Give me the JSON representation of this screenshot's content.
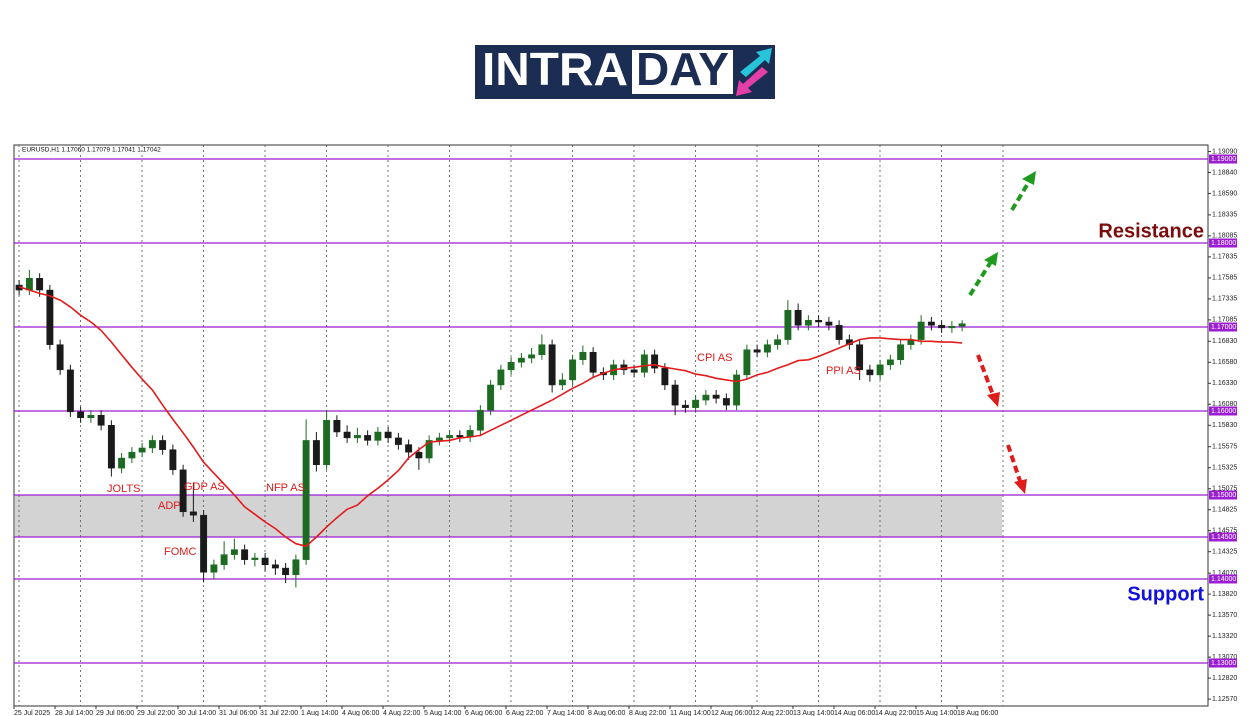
{
  "logo": {
    "left": "INTRA",
    "right": "DAY"
  },
  "chart_data": {
    "type": "candlestick",
    "header": "EURUSD,H1  1.17060 1.17079 1.17041 1.17042",
    "categories": [
      "25 Jul 2025",
      null,
      null,
      null,
      "28 Jul 14:00",
      null,
      null,
      null,
      "29 Jul 06:00",
      null,
      null,
      null,
      "29 Jul 22:00",
      null,
      null,
      null,
      "30 Jul 14:00",
      null,
      null,
      null,
      "31 Jul 06:00",
      null,
      null,
      null,
      "31 Jul 22:00",
      null,
      null,
      null,
      "1 Aug 14:00",
      null,
      null,
      null,
      "4 Aug 06:00",
      null,
      null,
      null,
      "4 Aug 22:00",
      null,
      null,
      null,
      "5 Aug 14:00",
      null,
      null,
      null,
      "6 Aug 06:00",
      null,
      null,
      null,
      "6 Aug 22:00",
      null,
      null,
      null,
      "7 Aug 14:00",
      null,
      null,
      null,
      "8 Aug 06:00",
      null,
      null,
      null,
      "8 Aug 22:00",
      null,
      null,
      null,
      "11 Aug 14:00",
      null,
      null,
      null,
      "12 Aug 06:00",
      null,
      null,
      null,
      "12 Aug 22:00",
      null,
      null,
      null,
      "13 Aug 14:00",
      null,
      null,
      null,
      "14 Aug 06:00",
      null,
      null,
      null,
      "14 Aug 22:00",
      null,
      null,
      null,
      "15 Aug 14:00",
      null,
      null,
      null,
      "18 Aug 06:00"
    ],
    "open": [
      1.175,
      1.1744,
      1.1758,
      1.1744,
      1.1679,
      1.1649,
      1.1599,
      1.1592,
      1.1595,
      1.1583,
      1.1532,
      1.1544,
      1.1551,
      1.1556,
      1.1565,
      1.1554,
      1.153,
      1.148,
      1.1476,
      1.1408,
      1.1417,
      1.1429,
      1.1435,
      1.1423,
      1.1425,
      1.1417,
      1.1413,
      1.1405,
      1.1423,
      1.1565,
      1.1536,
      1.1589,
      1.1575,
      1.1568,
      1.1571,
      1.1565,
      1.1575,
      1.1568,
      1.156,
      1.1551,
      1.1544,
      1.1565,
      1.1568,
      1.1571,
      1.1569,
      1.1577,
      1.1601,
      1.1631,
      1.1649,
      1.1658,
      1.1663,
      1.1667,
      1.1679,
      1.1631,
      1.1637,
      1.1661,
      1.167,
      1.1646,
      1.1643,
      1.1655,
      1.1649,
      1.1646,
      1.1667,
      1.1651,
      1.1631,
      1.1607,
      1.1604,
      1.1613,
      1.1619,
      1.1615,
      1.1607,
      1.1643,
      1.1673,
      1.167,
      1.1679,
      1.1685,
      1.172,
      1.1702,
      1.1708,
      1.1706,
      1.1702,
      1.1685,
      1.1679,
      1.1649,
      1.1643,
      1.1655,
      1.1661,
      1.1679,
      1.1685,
      1.1706,
      1.1702,
      1.1699,
      1.1701
    ],
    "high": [
      1.1756,
      1.1768,
      1.1764,
      1.175,
      1.1685,
      1.1655,
      1.1605,
      1.1601,
      1.1601,
      1.1589,
      1.155,
      1.1557,
      1.1562,
      1.1571,
      1.1571,
      1.156,
      1.1536,
      1.1515,
      1.1482,
      1.1423,
      1.1445,
      1.1448,
      1.1441,
      1.1431,
      1.1431,
      1.1423,
      1.1419,
      1.1429,
      1.159,
      1.1575,
      1.1601,
      1.1595,
      1.1583,
      1.158,
      1.1577,
      1.1581,
      1.1581,
      1.1574,
      1.1566,
      1.1557,
      1.1571,
      1.1574,
      1.1577,
      1.1577,
      1.1583,
      1.1607,
      1.1637,
      1.1655,
      1.1664,
      1.1669,
      1.1675,
      1.1691,
      1.1685,
      1.1645,
      1.1667,
      1.1678,
      1.1676,
      1.1652,
      1.1661,
      1.1661,
      1.1655,
      1.1673,
      1.1673,
      1.1657,
      1.1637,
      1.1613,
      1.1619,
      1.1625,
      1.1625,
      1.1621,
      1.1649,
      1.1679,
      1.1679,
      1.1685,
      1.1691,
      1.1732,
      1.1728,
      1.1714,
      1.1714,
      1.1712,
      1.1708,
      1.1691,
      1.1685,
      1.1655,
      1.1661,
      1.1667,
      1.1685,
      1.1691,
      1.1714,
      1.1712,
      1.1708,
      1.1707,
      1.1708
    ],
    "low": [
      1.1738,
      1.1738,
      1.1736,
      1.1673,
      1.1643,
      1.1593,
      1.1586,
      1.1586,
      1.1577,
      1.1522,
      1.1526,
      1.1538,
      1.1545,
      1.155,
      1.1548,
      1.1524,
      1.1474,
      1.1468,
      1.1396,
      1.14,
      1.1411,
      1.1423,
      1.1417,
      1.1415,
      1.1409,
      1.1405,
      1.1395,
      1.139,
      1.1417,
      1.1528,
      1.153,
      1.1569,
      1.1562,
      1.1562,
      1.1559,
      1.1559,
      1.1562,
      1.1554,
      1.1542,
      1.153,
      1.1538,
      1.1559,
      1.1562,
      1.1563,
      1.1563,
      1.1571,
      1.1595,
      1.1625,
      1.1643,
      1.1652,
      1.1657,
      1.1661,
      1.1622,
      1.1625,
      1.1631,
      1.1655,
      1.164,
      1.1637,
      1.1637,
      1.1643,
      1.164,
      1.164,
      1.1645,
      1.1625,
      1.1595,
      1.1598,
      1.1598,
      1.1607,
      1.1609,
      1.1601,
      1.1601,
      1.1637,
      1.1664,
      1.1664,
      1.1673,
      1.1679,
      1.1696,
      1.1696,
      1.17,
      1.1696,
      1.1679,
      1.1673,
      1.1637,
      1.1635,
      1.1637,
      1.1649,
      1.1655,
      1.1673,
      1.1679,
      1.1696,
      1.1693,
      1.1693,
      1.1695
    ],
    "close": [
      1.1744,
      1.1758,
      1.1744,
      1.1679,
      1.1649,
      1.1599,
      1.1592,
      1.1595,
      1.1583,
      1.1532,
      1.1544,
      1.1551,
      1.1556,
      1.1565,
      1.1554,
      1.153,
      1.148,
      1.1476,
      1.1408,
      1.1417,
      1.1429,
      1.1435,
      1.1423,
      1.1425,
      1.1417,
      1.1413,
      1.1405,
      1.1423,
      1.1565,
      1.1536,
      1.1589,
      1.1575,
      1.1568,
      1.1571,
      1.1565,
      1.1575,
      1.1568,
      1.156,
      1.1551,
      1.1544,
      1.1565,
      1.1568,
      1.1571,
      1.1569,
      1.1577,
      1.1601,
      1.1631,
      1.1649,
      1.1658,
      1.1663,
      1.1667,
      1.1679,
      1.1631,
      1.1637,
      1.1661,
      1.167,
      1.1646,
      1.1643,
      1.1655,
      1.1649,
      1.1646,
      1.1667,
      1.1651,
      1.1631,
      1.1607,
      1.1604,
      1.1613,
      1.1619,
      1.1615,
      1.1607,
      1.1643,
      1.1673,
      1.167,
      1.1679,
      1.1685,
      1.172,
      1.1702,
      1.1708,
      1.1706,
      1.1702,
      1.1685,
      1.1679,
      1.1649,
      1.1643,
      1.1655,
      1.1661,
      1.1679,
      1.1685,
      1.1706,
      1.1702,
      1.1699,
      1.1701,
      1.1704
    ],
    "up_color": "#1d6b22",
    "down_color": "#1a1a1a",
    "ma": {
      "color": "#e31b1b",
      "values": [
        1.1748,
        1.1744,
        1.174,
        1.1737,
        1.1732,
        1.1724,
        1.1714,
        1.1706,
        1.1696,
        1.1682,
        1.1667,
        1.1652,
        1.1638,
        1.1625,
        1.1607,
        1.159,
        1.1574,
        1.1557,
        1.1539,
        1.1526,
        1.1513,
        1.15,
        1.1486,
        1.1477,
        1.1468,
        1.146,
        1.145,
        1.1442,
        1.1439,
        1.145,
        1.1462,
        1.1473,
        1.1483,
        1.1488,
        1.1499,
        1.1508,
        1.1518,
        1.1529,
        1.1544,
        1.1554,
        1.1563,
        1.1564,
        1.1565,
        1.1568,
        1.1569,
        1.1571,
        1.1577,
        1.1583,
        1.1589,
        1.1595,
        1.1601,
        1.1607,
        1.1613,
        1.162,
        1.1627,
        1.1633,
        1.164,
        1.1645,
        1.1649,
        1.1651,
        1.1652,
        1.1654,
        1.1655,
        1.1652,
        1.165,
        1.1648,
        1.1644,
        1.1642,
        1.1639,
        1.1637,
        1.1635,
        1.1638,
        1.1643,
        1.1646,
        1.1651,
        1.1655,
        1.166,
        1.1661,
        1.1665,
        1.167,
        1.1675,
        1.168,
        1.1685,
        1.1687,
        1.1687,
        1.1686,
        1.1685,
        1.1685,
        1.1683,
        1.1683,
        1.1682,
        1.1682,
        1.1681
      ]
    },
    "ylim": [
      1.12488,
      1.19167
    ],
    "yticks": [
      {
        "value": 1.1257,
        "label": "1.12570"
      },
      {
        "value": 1.1282,
        "label": "1.12820"
      },
      {
        "value": 1.1307,
        "label": "1.13070"
      },
      {
        "value": 1.1332,
        "label": "1.13320"
      },
      {
        "value": 1.1357,
        "label": "1.13570"
      },
      {
        "value": 1.1382,
        "label": "1.13820"
      },
      {
        "value": 1.1407,
        "label": "1.14070"
      },
      {
        "value": 1.14325,
        "label": "1.14325"
      },
      {
        "value": 1.14575,
        "label": "1.14575"
      },
      {
        "value": 1.14825,
        "label": "1.14825"
      },
      {
        "value": 1.15075,
        "label": "1.15075"
      },
      {
        "value": 1.15325,
        "label": "1.15325"
      },
      {
        "value": 1.15575,
        "label": "1.15575"
      },
      {
        "value": 1.1583,
        "label": "1.15830"
      },
      {
        "value": 1.1608,
        "label": "1.16080"
      },
      {
        "value": 1.1633,
        "label": "1.16330"
      },
      {
        "value": 1.1658,
        "label": "1.16580"
      },
      {
        "value": 1.1683,
        "label": "1.16830"
      },
      {
        "value": 1.17085,
        "label": "1.17085"
      },
      {
        "value": 1.17335,
        "label": "1.17335"
      },
      {
        "value": 1.17585,
        "label": "1.17585"
      },
      {
        "value": 1.17835,
        "label": "1.17835"
      },
      {
        "value": 1.18085,
        "label": "1.18085"
      },
      {
        "value": 1.18335,
        "label": "1.18335"
      },
      {
        "value": 1.1859,
        "label": "1.18590"
      },
      {
        "value": 1.1884,
        "label": "1.18840"
      },
      {
        "value": 1.1909,
        "label": "1.19090"
      }
    ],
    "levels": {
      "color": "#9b1fd1",
      "values": [
        {
          "value": 1.19,
          "label": "1.19000"
        },
        {
          "value": 1.18,
          "label": "1.18000"
        },
        {
          "value": 1.17,
          "label": "1.17000"
        },
        {
          "value": 1.16,
          "label": "1.16000"
        },
        {
          "value": 1.15,
          "label": "1.15000"
        },
        {
          "value": 1.145,
          "label": "1.14500"
        },
        {
          "value": 1.14,
          "label": "1.14000"
        },
        {
          "value": 1.13,
          "label": "1.13000"
        }
      ]
    },
    "zone": [
      1.145,
      1.15
    ],
    "annotations": [
      "JOLTS",
      "GDP AS",
      "ADP",
      "FOMC",
      "NFP AS",
      "CPI AS",
      "PPI AS"
    ],
    "resistance_label": "Resistance",
    "support_label": "Support"
  }
}
